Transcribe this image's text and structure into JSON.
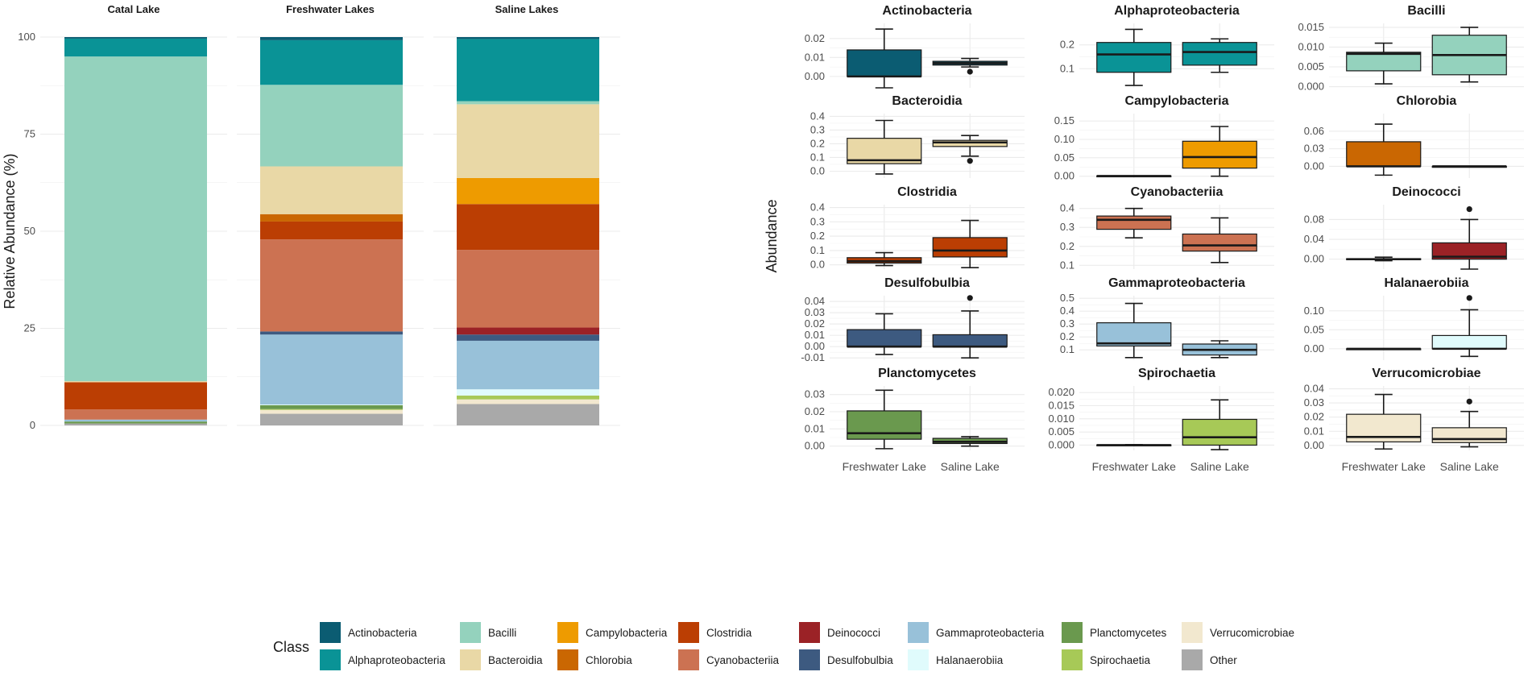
{
  "chart_data": [
    {
      "type": "bar",
      "subtype": "stacked-100",
      "ylabel": "Relative Abundance (%)",
      "xlabel": "",
      "ylim": [
        0,
        100
      ],
      "yticks": [
        "0",
        "25",
        "50",
        "75",
        "100"
      ],
      "facets": [
        {
          "name": "Catal Lake",
          "segments": [
            {
              "class": "Other",
              "value": 0.5
            },
            {
              "class": "Planctomycetes",
              "value": 0.5
            },
            {
              "class": "Gammaproteobacteria",
              "value": 0.5
            },
            {
              "class": "Cyanobacteriia",
              "value": 2.6
            },
            {
              "class": "Clostridia",
              "value": 7.0
            },
            {
              "class": "Bacteroidia",
              "value": 0.3
            },
            {
              "class": "Bacilli",
              "value": 83.6
            },
            {
              "class": "Alphaproteobacteria",
              "value": 4.6
            },
            {
              "class": "Actinobacteria",
              "value": 0.4
            }
          ]
        },
        {
          "name": "Freshwater Lakes",
          "segments": [
            {
              "class": "Other",
              "value": 3.0
            },
            {
              "class": "Verrucomicrobiae",
              "value": 1.0
            },
            {
              "class": "Spirochaetia",
              "value": 0.2
            },
            {
              "class": "Planctomycetes",
              "value": 1.0
            },
            {
              "class": "Halanaerobiia",
              "value": 0.2
            },
            {
              "class": "Gammaproteobacteria",
              "value": 18.0
            },
            {
              "class": "Desulfobulbia",
              "value": 0.8
            },
            {
              "class": "Cyanobacteriia",
              "value": 23.7
            },
            {
              "class": "Clostridia",
              "value": 4.6
            },
            {
              "class": "Chlorobia",
              "value": 1.9
            },
            {
              "class": "Bacteroidia",
              "value": 12.3
            },
            {
              "class": "Bacilli",
              "value": 21.0
            },
            {
              "class": "Alphaproteobacteria",
              "value": 11.5
            },
            {
              "class": "Actinobacteria",
              "value": 0.8
            }
          ]
        },
        {
          "name": "Saline Lakes",
          "segments": [
            {
              "class": "Other",
              "value": 5.5
            },
            {
              "class": "Verrucomicrobiae",
              "value": 1.2
            },
            {
              "class": "Spirochaetia",
              "value": 1.0
            },
            {
              "class": "Halanaerobiia",
              "value": 1.6
            },
            {
              "class": "Gammaproteobacteria",
              "value": 12.5
            },
            {
              "class": "Desulfobulbia",
              "value": 1.6
            },
            {
              "class": "Deinococci",
              "value": 1.8
            },
            {
              "class": "Cyanobacteriia",
              "value": 20.0
            },
            {
              "class": "Clostridia",
              "value": 11.8
            },
            {
              "class": "Campylobacteria",
              "value": 6.7
            },
            {
              "class": "Bacteroidia",
              "value": 19.0
            },
            {
              "class": "Bacilli",
              "value": 0.8
            },
            {
              "class": "Alphaproteobacteria",
              "value": 16.0
            },
            {
              "class": "Actinobacteria",
              "value": 0.5
            }
          ]
        }
      ]
    },
    {
      "type": "boxplot",
      "ylabel": "Abundance",
      "categories": [
        "Freshwater Lake",
        "Saline Lake"
      ],
      "panels": [
        {
          "title": "Actinobacteria",
          "ylim": [
            -0.006,
            0.028
          ],
          "yticks": [
            0,
            0.01,
            0.02
          ],
          "ticklabels": [
            "0.00",
            "0.01",
            "0.02"
          ],
          "boxes": [
            {
              "min": -0.006,
              "q1": 0.0,
              "median": 0.0,
              "q3": 0.014,
              "max": 0.025,
              "outliers": []
            },
            {
              "min": 0.005,
              "q1": 0.006,
              "median": 0.007,
              "q3": 0.008,
              "max": 0.0095,
              "outliers": [
                0.0025
              ]
            }
          ]
        },
        {
          "title": "Alphaproteobacteria",
          "ylim": [
            0.02,
            0.29
          ],
          "yticks": [
            0.1,
            0.2
          ],
          "ticklabels": [
            "0.1",
            "0.2"
          ],
          "boxes": [
            {
              "min": 0.03,
              "q1": 0.085,
              "median": 0.16,
              "q3": 0.21,
              "max": 0.265,
              "outliers": []
            },
            {
              "min": 0.085,
              "q1": 0.115,
              "median": 0.17,
              "q3": 0.21,
              "max": 0.225,
              "outliers": []
            }
          ]
        },
        {
          "title": "Bacilli",
          "ylim": [
            -0.0003,
            0.016
          ],
          "yticks": [
            0,
            0.005,
            0.01,
            0.015
          ],
          "ticklabels": [
            "0.000",
            "0.005",
            "0.010",
            "0.015"
          ],
          "boxes": [
            {
              "min": 0.0007,
              "q1": 0.004,
              "median": 0.0083,
              "q3": 0.0087,
              "max": 0.011,
              "outliers": []
            },
            {
              "min": 0.0012,
              "q1": 0.003,
              "median": 0.008,
              "q3": 0.013,
              "max": 0.015,
              "outliers": []
            }
          ]
        },
        {
          "title": "Bacteroidia",
          "ylim": [
            -0.05,
            0.42
          ],
          "yticks": [
            0,
            0.1,
            0.2,
            0.3,
            0.4
          ],
          "ticklabels": [
            "0.0",
            "0.1",
            "0.2",
            "0.3",
            "0.4"
          ],
          "boxes": [
            {
              "min": -0.02,
              "q1": 0.055,
              "median": 0.08,
              "q3": 0.24,
              "max": 0.37,
              "outliers": []
            },
            {
              "min": 0.11,
              "q1": 0.18,
              "median": 0.21,
              "q3": 0.225,
              "max": 0.26,
              "outliers": [
                0.075
              ]
            }
          ]
        },
        {
          "title": "Campylobacteria",
          "ylim": [
            -0.005,
            0.17
          ],
          "yticks": [
            0,
            0.05,
            0.1,
            0.15
          ],
          "ticklabels": [
            "0.00",
            "0.05",
            "0.10",
            "0.15"
          ],
          "boxes": [
            {
              "min": 0.0,
              "q1": 0.0,
              "median": 0.0005,
              "q3": 0.001,
              "max": 0.001,
              "outliers": []
            },
            {
              "min": 0.0,
              "q1": 0.022,
              "median": 0.052,
              "q3": 0.095,
              "max": 0.135,
              "outliers": []
            }
          ]
        },
        {
          "title": "Chlorobia",
          "ylim": [
            -0.02,
            0.09
          ],
          "yticks": [
            0,
            0.03,
            0.06
          ],
          "ticklabels": [
            "0.00",
            "0.03",
            "0.06"
          ],
          "boxes": [
            {
              "min": -0.015,
              "q1": 0.0,
              "median": 0.0,
              "q3": 0.042,
              "max": 0.072,
              "outliers": []
            },
            {
              "min": 0.0,
              "q1": 0.0,
              "median": 0.0,
              "q3": 0.0,
              "max": 0.0,
              "outliers": []
            }
          ]
        },
        {
          "title": "Clostridia",
          "ylim": [
            -0.03,
            0.42
          ],
          "yticks": [
            0,
            0.1,
            0.2,
            0.3,
            0.4
          ],
          "ticklabels": [
            "0.0",
            "0.1",
            "0.2",
            "0.3",
            "0.4"
          ],
          "boxes": [
            {
              "min": -0.005,
              "q1": 0.012,
              "median": 0.025,
              "q3": 0.05,
              "max": 0.085,
              "outliers": []
            },
            {
              "min": -0.02,
              "q1": 0.055,
              "median": 0.1,
              "q3": 0.19,
              "max": 0.31,
              "outliers": []
            }
          ]
        },
        {
          "title": "Cyanobacteriia",
          "ylim": [
            0.08,
            0.42
          ],
          "yticks": [
            0.1,
            0.2,
            0.3,
            0.4
          ],
          "ticklabels": [
            "0.1",
            "0.2",
            "0.3",
            "0.4"
          ],
          "boxes": [
            {
              "min": 0.245,
              "q1": 0.29,
              "median": 0.34,
              "q3": 0.36,
              "max": 0.4,
              "outliers": []
            },
            {
              "min": 0.115,
              "q1": 0.175,
              "median": 0.205,
              "q3": 0.265,
              "max": 0.35,
              "outliers": []
            }
          ]
        },
        {
          "title": "Deinococci",
          "ylim": [
            -0.02,
            0.11
          ],
          "yticks": [
            0,
            0.04,
            0.08
          ],
          "ticklabels": [
            "0.00",
            "0.04",
            "0.08"
          ],
          "boxes": [
            {
              "min": -0.003,
              "q1": -0.001,
              "median": 0.0,
              "q3": 0.001,
              "max": 0.004,
              "outliers": []
            },
            {
              "min": -0.02,
              "q1": 0.0,
              "median": 0.005,
              "q3": 0.033,
              "max": 0.08,
              "outliers": [
                0.101
              ]
            }
          ]
        },
        {
          "title": "Desulfobulbia",
          "ylim": [
            -0.012,
            0.045
          ],
          "yticks": [
            -0.01,
            0,
            0.01,
            0.02,
            0.03,
            0.04
          ],
          "ticklabels": [
            "-0.01",
            "0.00",
            "0.01",
            "0.02",
            "0.03",
            "0.04"
          ],
          "boxes": [
            {
              "min": -0.007,
              "q1": 0.0,
              "median": 0.0,
              "q3": 0.015,
              "max": 0.029,
              "outliers": []
            },
            {
              "min": -0.01,
              "q1": 0.0,
              "median": 0.0,
              "q3": 0.0105,
              "max": 0.0315,
              "outliers": [
                0.043
              ]
            }
          ]
        },
        {
          "title": "Gammaproteobacteria",
          "ylim": [
            0.02,
            0.52
          ],
          "yticks": [
            0.1,
            0.2,
            0.3,
            0.4,
            0.5
          ],
          "ticklabels": [
            "0.1",
            "0.2",
            "0.3",
            "0.4",
            "0.5"
          ],
          "boxes": [
            {
              "min": 0.04,
              "q1": 0.13,
              "median": 0.15,
              "q3": 0.31,
              "max": 0.46,
              "outliers": []
            },
            {
              "min": 0.04,
              "q1": 0.06,
              "median": 0.1,
              "q3": 0.145,
              "max": 0.17,
              "outliers": []
            }
          ]
        },
        {
          "title": "Halanaerobiia",
          "ylim": [
            -0.03,
            0.14
          ],
          "yticks": [
            0,
            0.05,
            0.1
          ],
          "ticklabels": [
            "0.00",
            "0.05",
            "0.10"
          ],
          "boxes": [
            {
              "min": 0.0,
              "q1": 0.0,
              "median": 0.0,
              "q3": 0.0,
              "max": 0.0,
              "outliers": []
            },
            {
              "min": -0.02,
              "q1": 0.0,
              "median": 0.0,
              "q3": 0.035,
              "max": 0.103,
              "outliers": [
                0.134
              ]
            }
          ]
        },
        {
          "title": "Planctomycetes",
          "ylim": [
            -0.0025,
            0.035
          ],
          "yticks": [
            0,
            0.01,
            0.02,
            0.03
          ],
          "ticklabels": [
            "0.00",
            "0.01",
            "0.02",
            "0.03"
          ],
          "boxes": [
            {
              "min": -0.0015,
              "q1": 0.004,
              "median": 0.0075,
              "q3": 0.0205,
              "max": 0.0325,
              "outliers": []
            },
            {
              "min": 0.0,
              "q1": 0.0015,
              "median": 0.0025,
              "q3": 0.0045,
              "max": 0.0055,
              "outliers": []
            }
          ]
        },
        {
          "title": "Spirochaetia",
          "ylim": [
            -0.002,
            0.0225
          ],
          "yticks": [
            0,
            0.005,
            0.01,
            0.015,
            0.02
          ],
          "ticklabels": [
            "0.000",
            "0.005",
            "0.010",
            "0.015",
            "0.020"
          ],
          "boxes": [
            {
              "min": 0.0,
              "q1": 0.0,
              "median": 0.0,
              "q3": 0.0001,
              "max": 0.0002,
              "outliers": []
            },
            {
              "min": -0.0017,
              "q1": 0.0,
              "median": 0.003,
              "q3": 0.0098,
              "max": 0.0172,
              "outliers": []
            }
          ]
        },
        {
          "title": "Verrucomicrobiae",
          "ylim": [
            -0.0035,
            0.042
          ],
          "yticks": [
            0,
            0.01,
            0.02,
            0.03,
            0.04
          ],
          "ticklabels": [
            "0.00",
            "0.01",
            "0.02",
            "0.03",
            "0.04"
          ],
          "boxes": [
            {
              "min": -0.0025,
              "q1": 0.0025,
              "median": 0.006,
              "q3": 0.022,
              "max": 0.036,
              "outliers": []
            },
            {
              "min": -0.001,
              "q1": 0.002,
              "median": 0.0045,
              "q3": 0.0125,
              "max": 0.024,
              "outliers": [
                0.031
              ]
            }
          ]
        }
      ]
    }
  ],
  "legend": {
    "title": "Class",
    "items": [
      {
        "label": "Actinobacteria",
        "color": "#0b5c72"
      },
      {
        "label": "Alphaproteobacteria",
        "color": "#0a9396"
      },
      {
        "label": "Bacilli",
        "color": "#94d2bd"
      },
      {
        "label": "Bacteroidia",
        "color": "#e9d8a6"
      },
      {
        "label": "Campylobacteria",
        "color": "#ee9b00"
      },
      {
        "label": "Chlorobia",
        "color": "#ca6702"
      },
      {
        "label": "Clostridia",
        "color": "#bb3e03"
      },
      {
        "label": "Cyanobacteriia",
        "color": "#cc7252"
      },
      {
        "label": "Deinococci",
        "color": "#9b2226"
      },
      {
        "label": "Desulfobulbia",
        "color": "#3d5a80"
      },
      {
        "label": "Gammaproteobacteria",
        "color": "#98c1d9"
      },
      {
        "label": "Halanaerobiia",
        "color": "#e0fbfc"
      },
      {
        "label": "Planctomycetes",
        "color": "#6a994e"
      },
      {
        "label": "Spirochaetia",
        "color": "#a7c957"
      },
      {
        "label": "Verrucomicrobiae",
        "color": "#f2e8cf"
      },
      {
        "label": "Other",
        "color": "#a9a9a9"
      }
    ]
  }
}
